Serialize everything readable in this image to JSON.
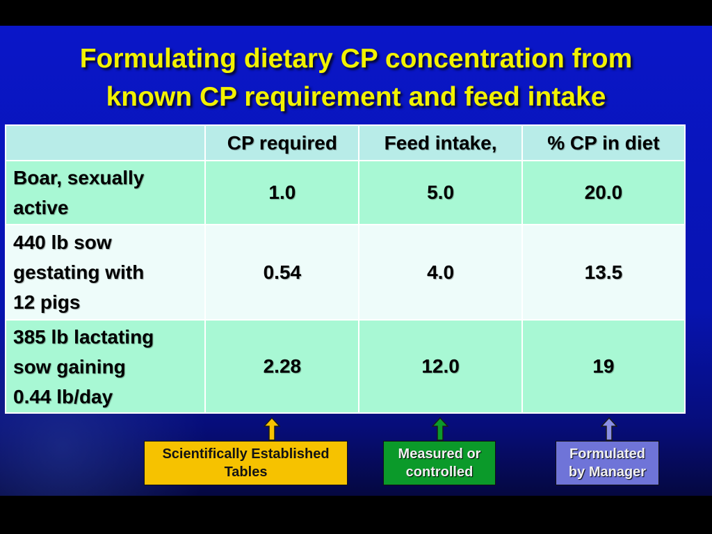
{
  "title": {
    "line1": "Formulating dietary CP concentration from",
    "line2": "known CP requirement and feed intake"
  },
  "table": {
    "headers": [
      "",
      "CP required",
      "Feed intake,",
      "% CP in diet"
    ],
    "rows": [
      {
        "label_lines": [
          "Boar, sexually",
          "active"
        ],
        "cp_required": "1.0",
        "feed_intake": "5.0",
        "cp_in_diet": "20.0"
      },
      {
        "label_lines": [
          "440 lb sow",
          "gestating with",
          "12 pigs"
        ],
        "cp_required": "0.54",
        "feed_intake": "4.0",
        "cp_in_diet": "13.5"
      },
      {
        "label_lines": [
          "385 lb lactating",
          "sow gaining",
          "0.44 lb/day"
        ],
        "cp_required": "2.28",
        "feed_intake": "12.0",
        "cp_in_diet": "19"
      }
    ]
  },
  "annotations": {
    "scientific": {
      "line1": "Scientifically Established",
      "line2": "Tables",
      "color": "#f6c200",
      "arrow_icon": "up-arrow-icon"
    },
    "measured": {
      "line1": "Measured or",
      "line2": "controlled",
      "color": "#0b9a2a",
      "arrow_icon": "up-arrow-icon"
    },
    "formulated": {
      "line1": "Formulated",
      "line2": "by Manager",
      "color": "#6f74d8",
      "arrow_icon": "up-arrow-icon"
    }
  },
  "colors": {
    "background": "#0a16c8",
    "title": "#f2f200",
    "header_row": "#b8ece8",
    "row_green": "#a8f8d4",
    "row_light": "#eefcfa"
  }
}
